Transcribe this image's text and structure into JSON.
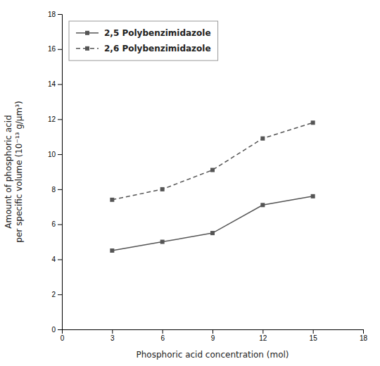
{
  "chart_data": {
    "type": "line",
    "x": [
      3,
      6,
      9,
      12,
      15
    ],
    "series": [
      {
        "name": "2,5 Polybenzimidazole",
        "color": "#555555",
        "line_style": "solid",
        "marker": "square",
        "values": [
          4.5,
          5.0,
          5.5,
          7.1,
          7.6
        ]
      },
      {
        "name": "2,6 Polybenzimidazole",
        "color": "#555555",
        "line_style": "dashed",
        "marker": "square",
        "values": [
          7.4,
          8.0,
          9.1,
          10.9,
          11.8
        ]
      }
    ],
    "xlabel": "Phosphoric acid concentration (mol)",
    "ylabel": "Amount of phosphoric acid\nper specific volume (10⁻¹³ g/μm³)",
    "xlim": [
      0,
      18
    ],
    "ylim": [
      0,
      18
    ],
    "xticks": [
      0,
      3,
      6,
      9,
      12,
      15,
      18
    ],
    "yticks": [
      0,
      2,
      4,
      6,
      8,
      10,
      12,
      14,
      16,
      18
    ],
    "grid": false,
    "legend": "upper left"
  }
}
